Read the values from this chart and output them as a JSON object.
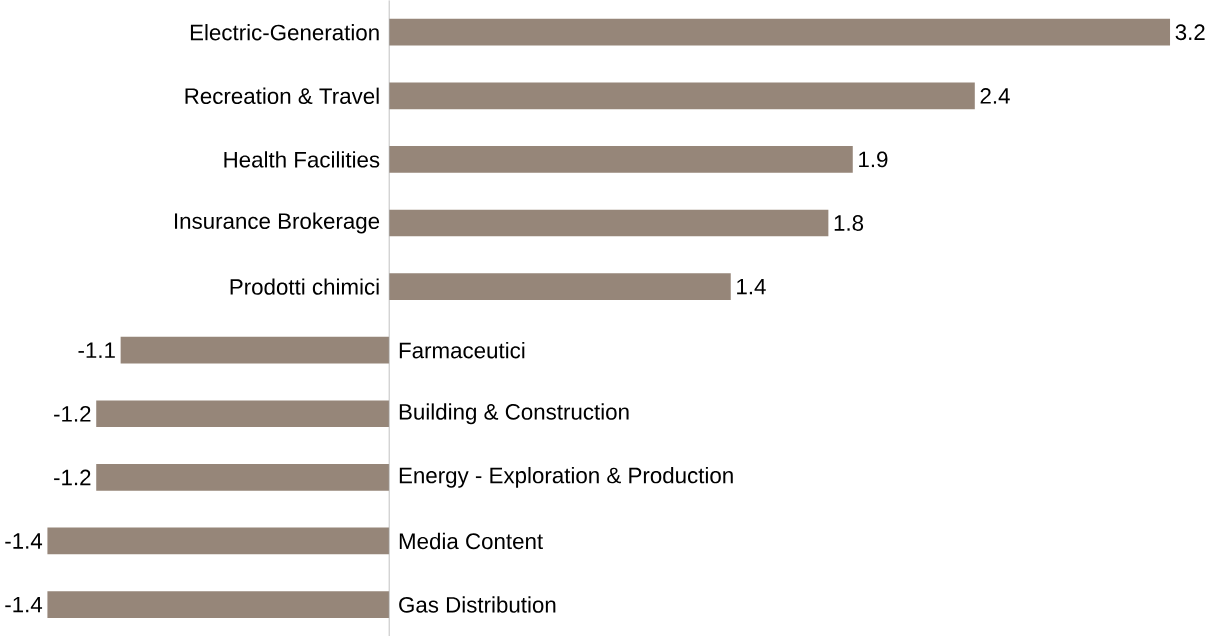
{
  "chart_data": {
    "type": "bar",
    "orientation": "horizontal",
    "data_labels": true,
    "color": "#968679",
    "categories": [
      "Electric-Generation",
      "Recreation & Travel",
      "Health Facilities",
      "Insurance Brokerage",
      "Prodotti chimici",
      "Farmaceutici",
      "Building & Construction",
      "Energy - Exploration & Production",
      "Media Content",
      "Gas Distribution"
    ],
    "values": [
      3.2,
      2.4,
      1.9,
      1.8,
      1.4,
      -1.1,
      -1.2,
      -1.2,
      -1.4,
      -1.4
    ]
  }
}
